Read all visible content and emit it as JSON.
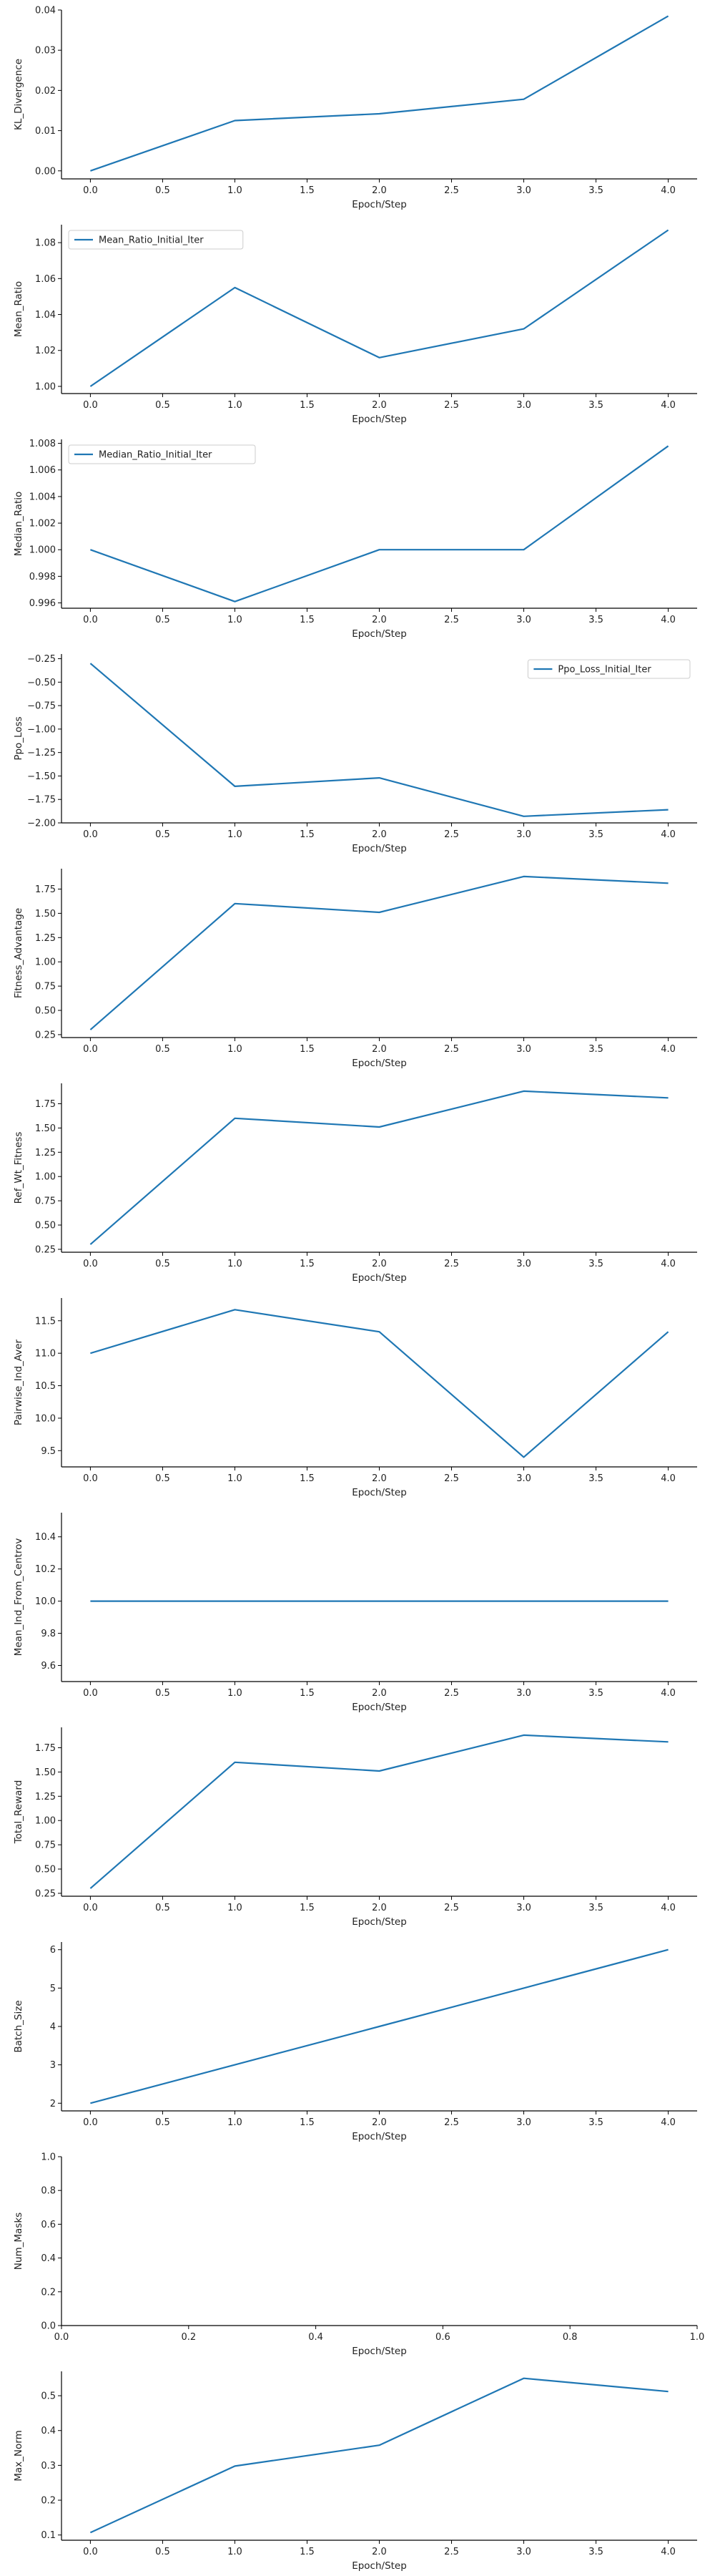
{
  "chart_data": [
    {
      "type": "line",
      "xlabel": "Epoch/Step",
      "ylabel": "KL_Divergence",
      "xlim": [
        -0.2,
        4.2
      ],
      "ylim": [
        -0.002,
        0.04
      ],
      "xticks": [
        {
          "v": 0,
          "label": "0.0"
        },
        {
          "v": 0.5,
          "label": "0.5"
        },
        {
          "v": 1,
          "label": "1.0"
        },
        {
          "v": 1.5,
          "label": "1.5"
        },
        {
          "v": 2,
          "label": "2.0"
        },
        {
          "v": 2.5,
          "label": "2.5"
        },
        {
          "v": 3,
          "label": "3.0"
        },
        {
          "v": 3.5,
          "label": "3.5"
        },
        {
          "v": 4,
          "label": "4.0"
        }
      ],
      "yticks": [
        {
          "v": 0,
          "label": "0.00"
        },
        {
          "v": 0.01,
          "label": "0.01"
        },
        {
          "v": 0.02,
          "label": "0.02"
        },
        {
          "v": 0.03,
          "label": "0.03"
        },
        {
          "v": 0.04,
          "label": "0.04"
        }
      ],
      "series": [
        {
          "x": [
            0,
            1,
            2,
            3,
            4
          ],
          "y": [
            0.0,
            0.0125,
            0.0142,
            0.0178,
            0.0385
          ]
        }
      ],
      "legend": null
    },
    {
      "type": "line",
      "xlabel": "Epoch/Step",
      "ylabel": "Mean_Ratio",
      "xlim": [
        -0.2,
        4.2
      ],
      "ylim": [
        0.996,
        1.09
      ],
      "xticks": [
        {
          "v": 0,
          "label": "0.0"
        },
        {
          "v": 0.5,
          "label": "0.5"
        },
        {
          "v": 1,
          "label": "1.0"
        },
        {
          "v": 1.5,
          "label": "1.5"
        },
        {
          "v": 2,
          "label": "2.0"
        },
        {
          "v": 2.5,
          "label": "2.5"
        },
        {
          "v": 3,
          "label": "3.0"
        },
        {
          "v": 3.5,
          "label": "3.5"
        },
        {
          "v": 4,
          "label": "4.0"
        }
      ],
      "yticks": [
        {
          "v": 1.0,
          "label": "1.00"
        },
        {
          "v": 1.02,
          "label": "1.02"
        },
        {
          "v": 1.04,
          "label": "1.04"
        },
        {
          "v": 1.06,
          "label": "1.06"
        },
        {
          "v": 1.08,
          "label": "1.08"
        }
      ],
      "series": [
        {
          "name": "Mean_Ratio_Initial_Iter",
          "x": [
            0,
            1,
            2,
            3,
            4
          ],
          "y": [
            1.0,
            1.055,
            1.016,
            1.032,
            1.087
          ]
        }
      ],
      "legend": "upper-left"
    },
    {
      "type": "line",
      "xlabel": "Epoch/Step",
      "ylabel": "Median_Ratio",
      "xlim": [
        -0.2,
        4.2
      ],
      "ylim": [
        0.9956,
        1.0083
      ],
      "xticks": [
        {
          "v": 0,
          "label": "0.0"
        },
        {
          "v": 0.5,
          "label": "0.5"
        },
        {
          "v": 1,
          "label": "1.0"
        },
        {
          "v": 1.5,
          "label": "1.5"
        },
        {
          "v": 2,
          "label": "2.0"
        },
        {
          "v": 2.5,
          "label": "2.5"
        },
        {
          "v": 3,
          "label": "3.0"
        },
        {
          "v": 3.5,
          "label": "3.5"
        },
        {
          "v": 4,
          "label": "4.0"
        }
      ],
      "yticks": [
        {
          "v": 0.996,
          "label": "0.996"
        },
        {
          "v": 0.998,
          "label": "0.998"
        },
        {
          "v": 1.0,
          "label": "1.000"
        },
        {
          "v": 1.002,
          "label": "1.002"
        },
        {
          "v": 1.004,
          "label": "1.004"
        },
        {
          "v": 1.006,
          "label": "1.006"
        },
        {
          "v": 1.008,
          "label": "1.008"
        }
      ],
      "series": [
        {
          "name": "Median_Ratio_Initial_Iter",
          "x": [
            0,
            1,
            2,
            3,
            4
          ],
          "y": [
            1.0,
            0.9961,
            1.0,
            1.0,
            1.0078
          ]
        }
      ],
      "legend": "upper-left"
    },
    {
      "type": "line",
      "xlabel": "Epoch/Step",
      "ylabel": "Ppo_Loss",
      "xlim": [
        -0.2,
        4.2
      ],
      "ylim": [
        -2.0,
        -0.2
      ],
      "xticks": [
        {
          "v": 0,
          "label": "0.0"
        },
        {
          "v": 0.5,
          "label": "0.5"
        },
        {
          "v": 1,
          "label": "1.0"
        },
        {
          "v": 1.5,
          "label": "1.5"
        },
        {
          "v": 2,
          "label": "2.0"
        },
        {
          "v": 2.5,
          "label": "2.5"
        },
        {
          "v": 3,
          "label": "3.0"
        },
        {
          "v": 3.5,
          "label": "3.5"
        },
        {
          "v": 4,
          "label": "4.0"
        }
      ],
      "yticks": [
        {
          "v": -0.25,
          "label": "−0.25"
        },
        {
          "v": -0.5,
          "label": "−0.50"
        },
        {
          "v": -0.75,
          "label": "−0.75"
        },
        {
          "v": -1.0,
          "label": "−1.00"
        },
        {
          "v": -1.25,
          "label": "−1.25"
        },
        {
          "v": -1.5,
          "label": "−1.50"
        },
        {
          "v": -1.75,
          "label": "−1.75"
        },
        {
          "v": -2.0,
          "label": "−2.00"
        }
      ],
      "series": [
        {
          "name": "Ppo_Loss_Initial_Iter",
          "x": [
            0,
            1,
            2,
            3,
            4
          ],
          "y": [
            -0.3,
            -1.61,
            -1.52,
            -1.93,
            -1.86
          ]
        }
      ],
      "legend": "upper-right"
    },
    {
      "type": "line",
      "xlabel": "Epoch/Step",
      "ylabel": "Fitness_Advantage",
      "xlim": [
        -0.2,
        4.2
      ],
      "ylim": [
        0.22,
        1.96
      ],
      "xticks": [
        {
          "v": 0,
          "label": "0.0"
        },
        {
          "v": 0.5,
          "label": "0.5"
        },
        {
          "v": 1,
          "label": "1.0"
        },
        {
          "v": 1.5,
          "label": "1.5"
        },
        {
          "v": 2,
          "label": "2.0"
        },
        {
          "v": 2.5,
          "label": "2.5"
        },
        {
          "v": 3,
          "label": "3.0"
        },
        {
          "v": 3.5,
          "label": "3.5"
        },
        {
          "v": 4,
          "label": "4.0"
        }
      ],
      "yticks": [
        {
          "v": 0.25,
          "label": "0.25"
        },
        {
          "v": 0.5,
          "label": "0.50"
        },
        {
          "v": 0.75,
          "label": "0.75"
        },
        {
          "v": 1.0,
          "label": "1.00"
        },
        {
          "v": 1.25,
          "label": "1.25"
        },
        {
          "v": 1.5,
          "label": "1.50"
        },
        {
          "v": 1.75,
          "label": "1.75"
        }
      ],
      "series": [
        {
          "x": [
            0,
            1,
            2,
            3,
            4
          ],
          "y": [
            0.3,
            1.6,
            1.51,
            1.88,
            1.81
          ]
        }
      ],
      "legend": null
    },
    {
      "type": "line",
      "xlabel": "Epoch/Step",
      "ylabel": "Ref_Wt_Fitness",
      "xlim": [
        -0.2,
        4.2
      ],
      "ylim": [
        0.22,
        1.96
      ],
      "xticks": [
        {
          "v": 0,
          "label": "0.0"
        },
        {
          "v": 0.5,
          "label": "0.5"
        },
        {
          "v": 1,
          "label": "1.0"
        },
        {
          "v": 1.5,
          "label": "1.5"
        },
        {
          "v": 2,
          "label": "2.0"
        },
        {
          "v": 2.5,
          "label": "2.5"
        },
        {
          "v": 3,
          "label": "3.0"
        },
        {
          "v": 3.5,
          "label": "3.5"
        },
        {
          "v": 4,
          "label": "4.0"
        }
      ],
      "yticks": [
        {
          "v": 0.25,
          "label": "0.25"
        },
        {
          "v": 0.5,
          "label": "0.50"
        },
        {
          "v": 0.75,
          "label": "0.75"
        },
        {
          "v": 1.0,
          "label": "1.00"
        },
        {
          "v": 1.25,
          "label": "1.25"
        },
        {
          "v": 1.5,
          "label": "1.50"
        },
        {
          "v": 1.75,
          "label": "1.75"
        }
      ],
      "series": [
        {
          "x": [
            0,
            1,
            2,
            3,
            4
          ],
          "y": [
            0.3,
            1.6,
            1.51,
            1.88,
            1.81
          ]
        }
      ],
      "legend": null
    },
    {
      "type": "line",
      "xlabel": "Epoch/Step",
      "ylabel": "Pairwise_Ind_Aver",
      "xlim": [
        -0.2,
        4.2
      ],
      "ylim": [
        9.25,
        11.85
      ],
      "xticks": [
        {
          "v": 0,
          "label": "0.0"
        },
        {
          "v": 0.5,
          "label": "0.5"
        },
        {
          "v": 1,
          "label": "1.0"
        },
        {
          "v": 1.5,
          "label": "1.5"
        },
        {
          "v": 2,
          "label": "2.0"
        },
        {
          "v": 2.5,
          "label": "2.5"
        },
        {
          "v": 3,
          "label": "3.0"
        },
        {
          "v": 3.5,
          "label": "3.5"
        },
        {
          "v": 4,
          "label": "4.0"
        }
      ],
      "yticks": [
        {
          "v": 9.5,
          "label": "9.5"
        },
        {
          "v": 10.0,
          "label": "10.0"
        },
        {
          "v": 10.5,
          "label": "10.5"
        },
        {
          "v": 11.0,
          "label": "11.0"
        },
        {
          "v": 11.5,
          "label": "11.5"
        }
      ],
      "series": [
        {
          "x": [
            0,
            1,
            2,
            3,
            4
          ],
          "y": [
            11.0,
            11.67,
            11.33,
            9.4,
            11.33
          ]
        }
      ],
      "legend": null
    },
    {
      "type": "line",
      "xlabel": "Epoch/Step",
      "ylabel": "Mean_Ind_From_Centrov",
      "xlim": [
        -0.2,
        4.2
      ],
      "ylim": [
        9.5,
        10.55
      ],
      "xticks": [
        {
          "v": 0,
          "label": "0.0"
        },
        {
          "v": 0.5,
          "label": "0.5"
        },
        {
          "v": 1,
          "label": "1.0"
        },
        {
          "v": 1.5,
          "label": "1.5"
        },
        {
          "v": 2,
          "label": "2.0"
        },
        {
          "v": 2.5,
          "label": "2.5"
        },
        {
          "v": 3,
          "label": "3.0"
        },
        {
          "v": 3.5,
          "label": "3.5"
        },
        {
          "v": 4,
          "label": "4.0"
        }
      ],
      "yticks": [
        {
          "v": 9.6,
          "label": "9.6"
        },
        {
          "v": 9.8,
          "label": "9.8"
        },
        {
          "v": 10.0,
          "label": "10.0"
        },
        {
          "v": 10.2,
          "label": "10.2"
        },
        {
          "v": 10.4,
          "label": "10.4"
        }
      ],
      "series": [
        {
          "x": [
            0,
            1,
            2,
            3,
            4
          ],
          "y": [
            10.0,
            10.0,
            10.0,
            10.0,
            10.0
          ]
        }
      ],
      "legend": null
    },
    {
      "type": "line",
      "xlabel": "Epoch/Step",
      "ylabel": "Total_Reward",
      "xlim": [
        -0.2,
        4.2
      ],
      "ylim": [
        0.22,
        1.96
      ],
      "xticks": [
        {
          "v": 0,
          "label": "0.0"
        },
        {
          "v": 0.5,
          "label": "0.5"
        },
        {
          "v": 1,
          "label": "1.0"
        },
        {
          "v": 1.5,
          "label": "1.5"
        },
        {
          "v": 2,
          "label": "2.0"
        },
        {
          "v": 2.5,
          "label": "2.5"
        },
        {
          "v": 3,
          "label": "3.0"
        },
        {
          "v": 3.5,
          "label": "3.5"
        },
        {
          "v": 4,
          "label": "4.0"
        }
      ],
      "yticks": [
        {
          "v": 0.25,
          "label": "0.25"
        },
        {
          "v": 0.5,
          "label": "0.50"
        },
        {
          "v": 0.75,
          "label": "0.75"
        },
        {
          "v": 1.0,
          "label": "1.00"
        },
        {
          "v": 1.25,
          "label": "1.25"
        },
        {
          "v": 1.5,
          "label": "1.50"
        },
        {
          "v": 1.75,
          "label": "1.75"
        }
      ],
      "series": [
        {
          "x": [
            0,
            1,
            2,
            3,
            4
          ],
          "y": [
            0.3,
            1.6,
            1.51,
            1.88,
            1.81
          ]
        }
      ],
      "legend": null
    },
    {
      "type": "line",
      "xlabel": "Epoch/Step",
      "ylabel": "Batch_Size",
      "xlim": [
        -0.2,
        4.2
      ],
      "ylim": [
        1.8,
        6.2
      ],
      "xticks": [
        {
          "v": 0,
          "label": "0.0"
        },
        {
          "v": 0.5,
          "label": "0.5"
        },
        {
          "v": 1,
          "label": "1.0"
        },
        {
          "v": 1.5,
          "label": "1.5"
        },
        {
          "v": 2,
          "label": "2.0"
        },
        {
          "v": 2.5,
          "label": "2.5"
        },
        {
          "v": 3,
          "label": "3.0"
        },
        {
          "v": 3.5,
          "label": "3.5"
        },
        {
          "v": 4,
          "label": "4.0"
        }
      ],
      "yticks": [
        {
          "v": 2,
          "label": "2"
        },
        {
          "v": 3,
          "label": "3"
        },
        {
          "v": 4,
          "label": "4"
        },
        {
          "v": 5,
          "label": "5"
        },
        {
          "v": 6,
          "label": "6"
        }
      ],
      "series": [
        {
          "x": [
            0,
            1,
            2,
            3,
            4
          ],
          "y": [
            2,
            3,
            4,
            5,
            6
          ]
        }
      ],
      "legend": null
    },
    {
      "type": "line",
      "xlabel": "Epoch/Step",
      "ylabel": "Num_Masks",
      "xlim": [
        0,
        1
      ],
      "ylim": [
        0,
        1
      ],
      "xticks": [
        {
          "v": 0,
          "label": "0.0"
        },
        {
          "v": 0.2,
          "label": "0.2"
        },
        {
          "v": 0.4,
          "label": "0.4"
        },
        {
          "v": 0.6,
          "label": "0.6"
        },
        {
          "v": 0.8,
          "label": "0.8"
        },
        {
          "v": 1.0,
          "label": "1.0"
        }
      ],
      "yticks": [
        {
          "v": 0,
          "label": "0.0"
        },
        {
          "v": 0.2,
          "label": "0.2"
        },
        {
          "v": 0.4,
          "label": "0.4"
        },
        {
          "v": 0.6,
          "label": "0.6"
        },
        {
          "v": 0.8,
          "label": "0.8"
        },
        {
          "v": 1.0,
          "label": "1.0"
        }
      ],
      "series": [],
      "legend": null
    },
    {
      "type": "line",
      "xlabel": "Epoch/Step",
      "ylabel": "Max_Norm",
      "xlim": [
        -0.2,
        4.2
      ],
      "ylim": [
        0.085,
        0.57
      ],
      "xticks": [
        {
          "v": 0,
          "label": "0.0"
        },
        {
          "v": 0.5,
          "label": "0.5"
        },
        {
          "v": 1,
          "label": "1.0"
        },
        {
          "v": 1.5,
          "label": "1.5"
        },
        {
          "v": 2,
          "label": "2.0"
        },
        {
          "v": 2.5,
          "label": "2.5"
        },
        {
          "v": 3,
          "label": "3.0"
        },
        {
          "v": 3.5,
          "label": "3.5"
        },
        {
          "v": 4,
          "label": "4.0"
        }
      ],
      "yticks": [
        {
          "v": 0.1,
          "label": "0.1"
        },
        {
          "v": 0.2,
          "label": "0.2"
        },
        {
          "v": 0.3,
          "label": "0.3"
        },
        {
          "v": 0.4,
          "label": "0.4"
        },
        {
          "v": 0.5,
          "label": "0.5"
        }
      ],
      "series": [
        {
          "x": [
            0,
            1,
            2,
            3,
            4
          ],
          "y": [
            0.107,
            0.298,
            0.358,
            0.55,
            0.512
          ]
        }
      ],
      "legend": null
    }
  ],
  "line_color": "#1f77b4"
}
